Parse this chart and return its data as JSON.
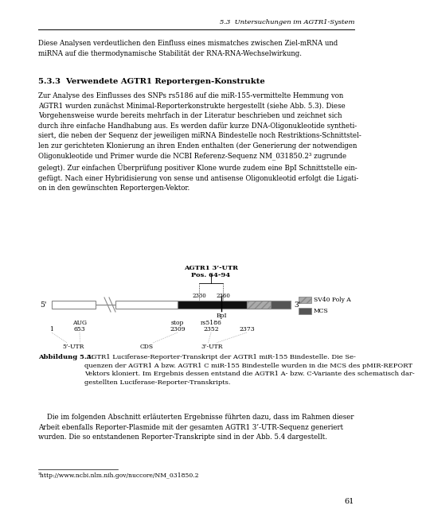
{
  "bg_color": "#ffffff",
  "header_text": "5.3  Untersuchungen im AGTR1-System",
  "page_number": "61",
  "intro_text": "Diese Analysen verdeutlichen den Einfluss eines mismatches zwischen Ziel-mRNA und\nmiRNA auf die thermodynamische Stabilität der RNA-RNA-Wechselwirkung.",
  "section_title": "5.3.3  Verwendete AGTR1 Reportergen-Konstrukte",
  "body_text": "Zur Analyse des Einflusses des SNPs rs5186 auf die miR-155-vermittelte Hemmung von\nAGTR1 wurden zunächst Minimal-Reporterkonstrukte hergestellt (siehe Abb. 5.3). Diese\nVorgehensweise wurde bereits mehrfach in der Literatur beschrieben und zeichnet sich\ndurch ihre einfache Handhabung aus. Es werden dafür kurze DNA-Oligonukleotide syntheti-\nsiert, die neben der Sequenz der jeweiligen miRNA Bindestelle noch Restriktions-Schnittstel-\nlen zur gerichteten Klonierung an ihren Enden enthalten (der Generierung der notwendigen\nOligonukleotide und Primer wurde die NCBI Referenz-Sequenz NM_031850.2³ zugrunde\ngelegt). Zur einfachen Überprüfung positiver Klone wurde zudem eine BpI Schnittstelle ein-\ngefügt. Nach einer Hybridisierung von sense und antisense Oligonukleotid erfolgt die Ligati-\non in den gewünschten Reportergen-Vektor.",
  "caption_bold": "Abbildung 5.3:",
  "caption_text": " AGTR1 Luciferase-Reporter-Transkript der AGTR1 miR-155 Bindestelle. Die Se-\nquenzen der AGTR1 A bzw. AGTR1 C miR-155 Bindestelle wurden in die MCS des pMIR-REPORT\nVektors kloniert. Im Ergebnis dessen entstand die AGTR1 A- bzw. C-Variante des schematisch dar-\ngestellten Luciferase-Reporter-Transkripts.",
  "bottom_text": "    Die im folgenden Abschnitt erläuterten Ergebnisse führten dazu, dass im Rahmen dieser\nArbeit ebenfalls Reporter-Plasmide mit der gesamten AGTR1 3’-UTR-Sequenz generiert\nwurden. Die so entstandenen Reporter-Transkripte sind in der Abb. 5.4 dargestellt.",
  "footnote": "³http://www.ncbi.nlm.nih.gov/nuccore/NM_031850.2"
}
